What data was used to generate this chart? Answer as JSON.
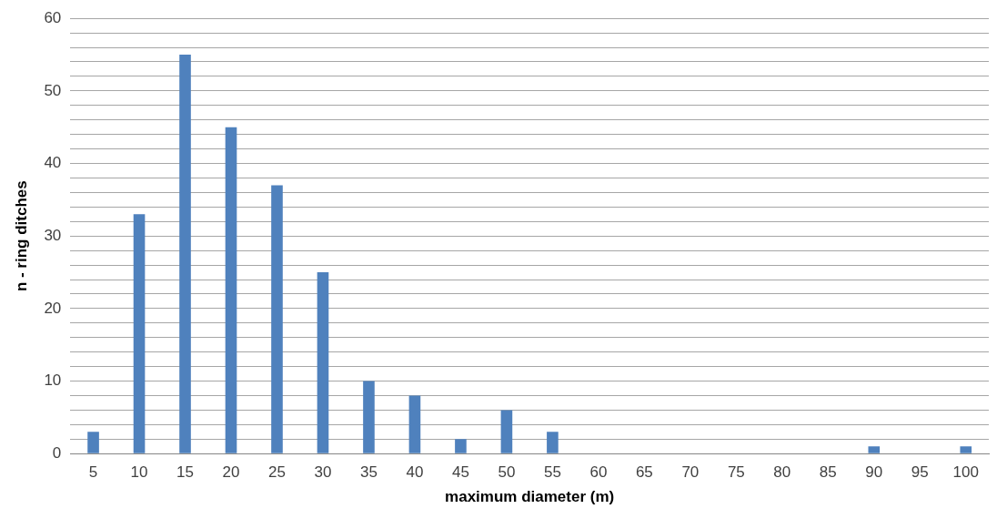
{
  "chart_data": {
    "type": "bar",
    "xlabel": "maximum diameter (m)",
    "ylabel": "n - ring ditches",
    "categories": [
      "5",
      "10",
      "15",
      "20",
      "25",
      "30",
      "35",
      "40",
      "45",
      "50",
      "55",
      "60",
      "65",
      "70",
      "75",
      "80",
      "85",
      "90",
      "95",
      "100"
    ],
    "values": [
      3,
      33,
      55,
      45,
      37,
      25,
      10,
      8,
      2,
      6,
      3,
      0,
      0,
      0,
      0,
      0,
      0,
      1,
      0,
      1
    ],
    "color": "#4f81bd",
    "ylim": [
      0,
      60
    ],
    "yticks": [
      0,
      {
        "value": 2,
        "label": null
      },
      {
        "value": 4,
        "label": null
      },
      {
        "value": 6,
        "label": null
      },
      {
        "value": 8,
        "label": null
      },
      10,
      {
        "value": 12,
        "label": null
      },
      {
        "value": 14,
        "label": null
      },
      {
        "value": 16,
        "label": null
      },
      {
        "value": 18,
        "label": null
      },
      20,
      {
        "value": 22,
        "label": null
      },
      {
        "value": 24,
        "label": null
      },
      {
        "value": 26,
        "label": null
      },
      {
        "value": 28,
        "label": null
      },
      30,
      {
        "value": 32,
        "label": null
      },
      {
        "value": 34,
        "label": null
      },
      {
        "value": 36,
        "label": null
      },
      {
        "value": 38,
        "label": null
      },
      40,
      {
        "value": 42,
        "label": null
      },
      {
        "value": 44,
        "label": null
      },
      {
        "value": 46,
        "label": null
      },
      {
        "value": 48,
        "label": null
      },
      50,
      {
        "value": 52,
        "label": null
      },
      {
        "value": 54,
        "label": null
      },
      {
        "value": 56,
        "label": null
      },
      {
        "value": 58,
        "label": null
      },
      60
    ],
    "grid": "y",
    "legend": false
  }
}
